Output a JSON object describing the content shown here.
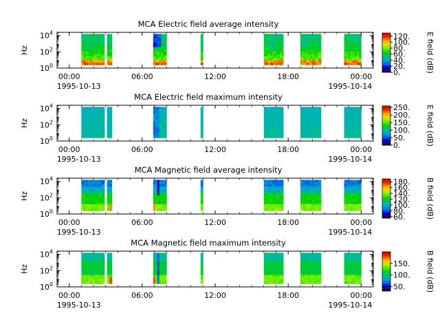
{
  "chart_data": [
    {
      "type": "heatmap",
      "title": "MCA  Electric field average intensity",
      "ylabel": "Hz",
      "y_scale": "log",
      "ylim_exponent": [
        0,
        4.4
      ],
      "y_ticks": [
        {
          "base": "10",
          "exp": "0"
        },
        {
          "base": "10",
          "exp": "2"
        },
        {
          "base": "10",
          "exp": "4"
        }
      ],
      "x_ticks": [
        "00:00",
        "06:00",
        "12:00",
        "18:00",
        "00:00"
      ],
      "x_dates": [
        "1995-10-13",
        "1995-10-14"
      ],
      "colorbar": {
        "label": "E field (dB)",
        "range": [
          0,
          130
        ],
        "ticks": [
          "0.",
          "20.",
          "40.",
          "60.",
          "80.",
          "100.",
          "120."
        ]
      },
      "data_intervals_hours": [
        [
          1.0,
          1.9
        ],
        [
          1.9,
          2.9
        ],
        [
          3.1,
          3.5
        ],
        [
          6.9,
          7.4
        ],
        [
          7.4,
          8.0
        ],
        [
          10.8,
          11.0
        ],
        [
          16.0,
          17.5
        ],
        [
          17.5,
          17.6
        ],
        [
          19.0,
          20.5
        ],
        [
          20.5,
          20.7
        ],
        [
          22.6,
          24.0
        ]
      ],
      "intensity_profile": "average-electric"
    },
    {
      "type": "heatmap",
      "title": "MCA  Electric field maximum intensity",
      "ylabel": "Hz",
      "y_scale": "log",
      "ylim_exponent": [
        0,
        4.4
      ],
      "y_ticks": [
        {
          "base": "10",
          "exp": "0"
        },
        {
          "base": "10",
          "exp": "2"
        },
        {
          "base": "10",
          "exp": "4"
        }
      ],
      "x_ticks": [
        "00:00",
        "06:00",
        "12:00",
        "18:00",
        "00:00"
      ],
      "x_dates": [
        "1995-10-13",
        "1995-10-14"
      ],
      "colorbar": {
        "label": "E field (dB)",
        "range": [
          0,
          260
        ],
        "ticks": [
          "0.",
          "50.",
          "100.",
          "150.",
          "200.",
          "250."
        ]
      },
      "data_intervals_hours": [
        [
          1.0,
          1.9
        ],
        [
          1.9,
          2.9
        ],
        [
          3.1,
          3.5
        ],
        [
          6.9,
          7.4
        ],
        [
          7.4,
          8.0
        ],
        [
          10.8,
          11.0
        ],
        [
          16.0,
          17.5
        ],
        [
          17.5,
          17.6
        ],
        [
          19.0,
          20.5
        ],
        [
          20.5,
          20.7
        ],
        [
          22.6,
          24.0
        ]
      ],
      "intensity_profile": "maximum-electric"
    },
    {
      "type": "heatmap",
      "title": "MCA  Magnetic field average intensity",
      "ylabel": "Hz",
      "y_scale": "log",
      "ylim_exponent": [
        0,
        4.4
      ],
      "y_ticks": [
        {
          "base": "10",
          "exp": "0"
        },
        {
          "base": "10",
          "exp": "2"
        },
        {
          "base": "10",
          "exp": "4"
        }
      ],
      "x_ticks": [
        "00:00",
        "06:00",
        "12:00",
        "18:00",
        "00:00"
      ],
      "x_dates": [
        "1995-10-13",
        "1995-10-14"
      ],
      "colorbar": {
        "label": "B field (dB)",
        "range": [
          55,
          190
        ],
        "ticks": [
          "60.",
          "80.",
          "100.",
          "120.",
          "140.",
          "160.",
          "180."
        ]
      },
      "data_intervals_hours": [
        [
          1.0,
          1.9
        ],
        [
          1.9,
          2.9
        ],
        [
          3.1,
          3.5
        ],
        [
          6.9,
          7.4
        ],
        [
          7.4,
          8.0
        ],
        [
          10.8,
          11.0
        ],
        [
          16.0,
          17.5
        ],
        [
          17.5,
          17.6
        ],
        [
          19.0,
          20.5
        ],
        [
          20.5,
          20.7
        ],
        [
          22.6,
          24.0
        ]
      ],
      "intensity_profile": "average-magnetic"
    },
    {
      "type": "heatmap",
      "title": "MCA  Magnetic field maximum intensity",
      "ylabel": "Hz",
      "y_scale": "log",
      "ylim_exponent": [
        0,
        4.4
      ],
      "y_ticks": [
        {
          "base": "10",
          "exp": "0"
        },
        {
          "base": "10",
          "exp": "2"
        },
        {
          "base": "10",
          "exp": "4"
        }
      ],
      "x_ticks": [
        "00:00",
        "06:00",
        "12:00",
        "18:00",
        "00:00"
      ],
      "x_dates": [
        "1995-10-13",
        "1995-10-14"
      ],
      "colorbar": {
        "label": "B field (dB)",
        "range": [
          30,
          200
        ],
        "ticks": [
          "50.",
          "100.",
          "150."
        ]
      },
      "data_intervals_hours": [
        [
          1.0,
          1.9
        ],
        [
          1.9,
          2.9
        ],
        [
          3.1,
          3.5
        ],
        [
          6.9,
          7.4
        ],
        [
          7.4,
          8.0
        ],
        [
          10.8,
          11.0
        ],
        [
          16.0,
          17.5
        ],
        [
          17.5,
          17.6
        ],
        [
          19.0,
          20.5
        ],
        [
          20.5,
          20.7
        ],
        [
          22.6,
          24.0
        ]
      ],
      "intensity_profile": "maximum-magnetic"
    }
  ]
}
